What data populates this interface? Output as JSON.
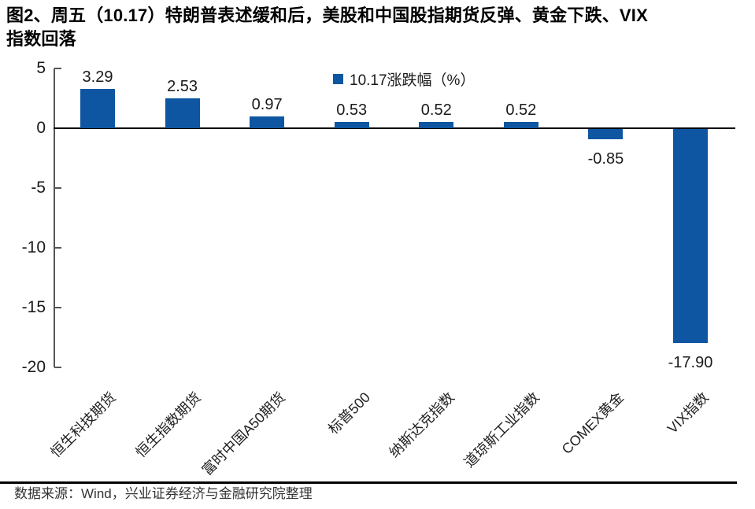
{
  "title": {
    "line1": "图2、周五（10.17）特朗普表述缓和后，美股和中国股指期货反弹、黄金下跌、VIX",
    "line2": "指数回落"
  },
  "legend": {
    "label": "10.17涨跌幅（%）",
    "marker_color": "#0E56A1"
  },
  "source": {
    "text": "数据来源：Wind，兴业证券经济与金融研究院整理"
  },
  "colors": {
    "bar": "#0E56A1",
    "axis": "#555555",
    "zero_line": "#000000",
    "label_text": "#1a1a1a"
  },
  "chart_data": {
    "type": "bar",
    "title": "图2、周五（10.17）特朗普表述缓和后，美股和中国股指期货反弹、黄金下跌、VIX指数回落",
    "legend_entries": [
      "10.17涨跌幅（%）"
    ],
    "legend_position": "top-center",
    "categories": [
      "恒生科技期货",
      "恒生指数期货",
      "富时中国A50期货",
      "标普500",
      "纳斯达克指数",
      "道琼斯工业指数",
      "COMEX黄金",
      "VIX指数"
    ],
    "values": [
      3.29,
      2.53,
      0.97,
      0.53,
      0.52,
      0.52,
      -0.85,
      -17.9
    ],
    "value_labels": [
      "3.29",
      "2.53",
      "0.97",
      "0.53",
      "0.52",
      "0.52",
      "-0.85",
      "-17.90"
    ],
    "ylim": [
      -20,
      5
    ],
    "yticks": [
      5,
      0,
      -5,
      -10,
      -15,
      -20
    ],
    "grid": false,
    "bar_color": "#0E56A1",
    "xlabel": "",
    "ylabel": ""
  }
}
